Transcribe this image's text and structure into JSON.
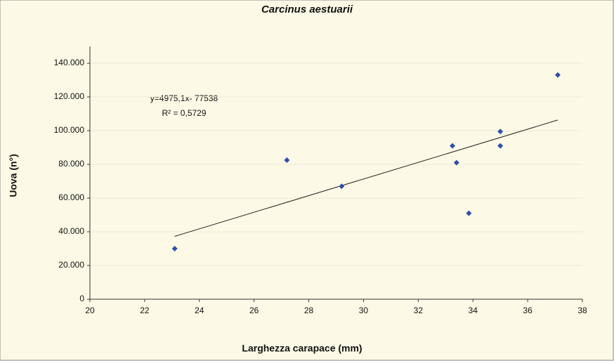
{
  "chart_data": {
    "type": "scatter",
    "title": "Carcinus aestuarii",
    "x_label": "Larghezza carapace (mm)",
    "y_label": "Uova (n°)",
    "annotations": [
      "y=4975,1x- 77538",
      "R² = 0,5729"
    ],
    "trendline": "linear",
    "series": [
      {
        "color": "#2f4fa8",
        "x": [
          23.1,
          27.2,
          29.2,
          33.25,
          33.4,
          33.85,
          35.0,
          35.0,
          37.1
        ],
        "values": [
          30000,
          82500,
          67000,
          91000,
          81000,
          51000,
          99500,
          91000,
          133000
        ]
      }
    ],
    "xlim": [
      20,
      38
    ],
    "xticks": [
      20,
      22,
      24,
      26,
      28,
      30,
      32,
      34,
      36,
      38
    ],
    "ylim": [
      0,
      150000
    ],
    "yticks": [
      0,
      {
        "value": 20000,
        "label": "20.000"
      },
      {
        "value": 40000,
        "label": "40.000"
      },
      {
        "value": 60000,
        "label": "60.000"
      },
      {
        "value": 80000,
        "label": "80.000"
      },
      {
        "value": 100000,
        "label": "100.000"
      },
      {
        "value": 120000,
        "label": "120.000"
      },
      {
        "value": 140000,
        "label": "140.000"
      }
    ],
    "grid": true
  }
}
